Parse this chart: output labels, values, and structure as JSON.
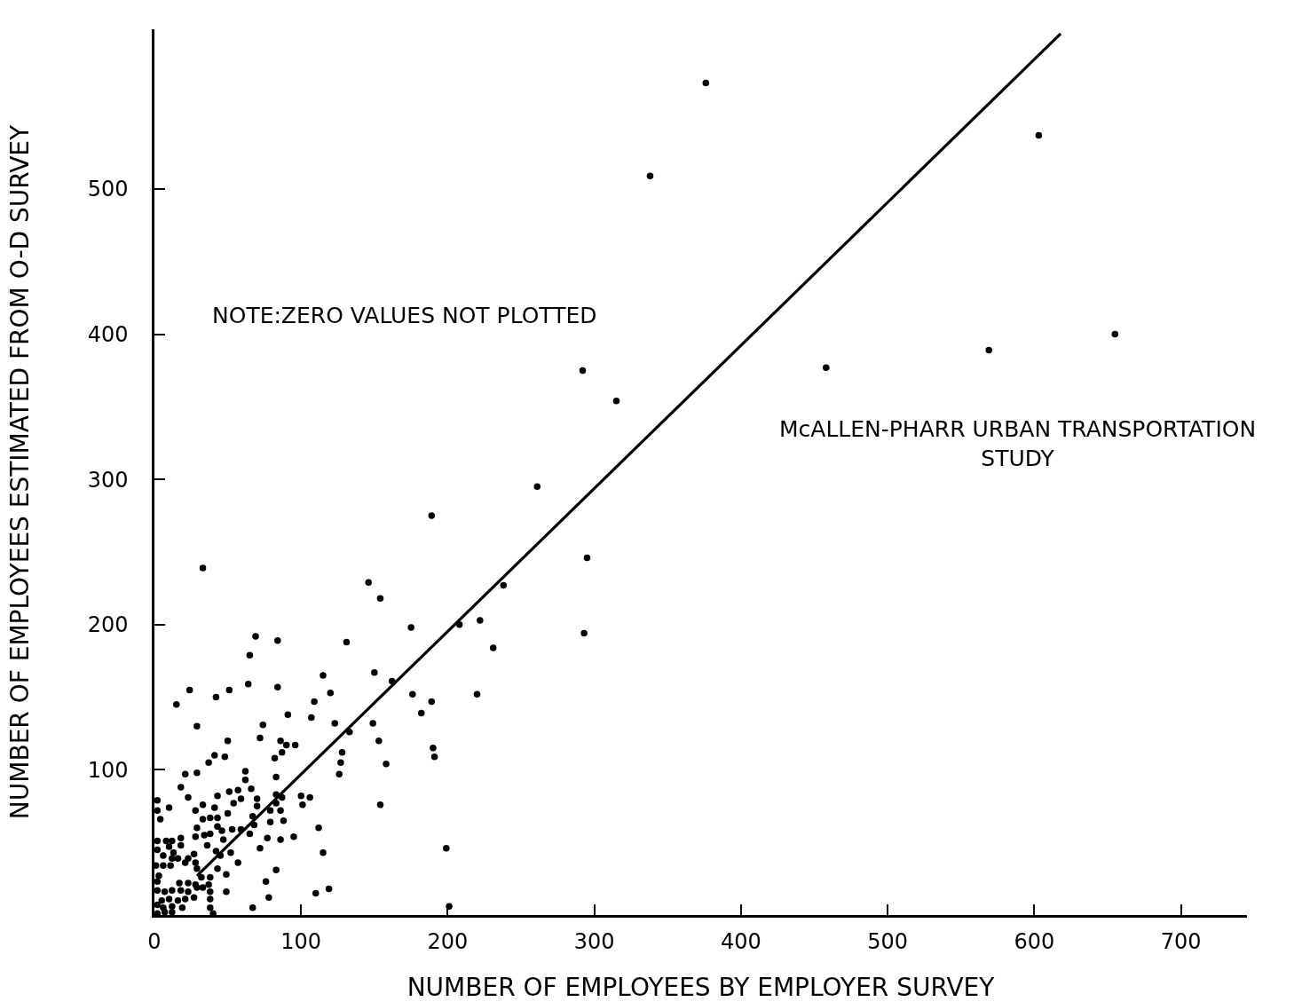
{
  "chart_data": {
    "type": "scatter",
    "xlabel": "NUMBER OF EMPLOYEES BY EMPLOYER SURVEY",
    "ylabel": "NUMBER OF EMPLOYEES ESTIMATED FROM O-D SURVEY",
    "annotations": [
      "NOTE:ZERO VALUES NOT PLOTTED",
      "McALLEN-PHARR URBAN TRANSPORTATION\nSTUDY"
    ],
    "xlim": [
      0,
      745
    ],
    "ylim": [
      0,
      610
    ],
    "xticks": [
      0,
      100,
      200,
      300,
      400,
      500,
      600,
      700
    ],
    "yticks": [
      100,
      200,
      300,
      400,
      500
    ],
    "marker": "circle",
    "series": [
      {
        "color": "#000000",
        "x": [
          376,
          338,
          603,
          458,
          569,
          655,
          292,
          315,
          261,
          189,
          295,
          293,
          33,
          146,
          154,
          175,
          131,
          150,
          115,
          162,
          120,
          176,
          189,
          109,
          220,
          182,
          107,
          123,
          149,
          133,
          153,
          96,
          128,
          190,
          191,
          127,
          158,
          126,
          154,
          100,
          106,
          101,
          112,
          95,
          115,
          110,
          119,
          199,
          201,
          208,
          222,
          231,
          238,
          69,
          84,
          65,
          24,
          51,
          64,
          84,
          42,
          15,
          91,
          29,
          74,
          50,
          72,
          86,
          90,
          87,
          41,
          48,
          37,
          21,
          29,
          62,
          62,
          18,
          23,
          43,
          51,
          57,
          66,
          59,
          70,
          2,
          2,
          10,
          4,
          33,
          28,
          41,
          54,
          70,
          50,
          33,
          38,
          43,
          67,
          79,
          83,
          87,
          83,
          86,
          83,
          82,
          88,
          79,
          68,
          29,
          43,
          46,
          53,
          59,
          65,
          47,
          28,
          34,
          38,
          36,
          42,
          52,
          45,
          57,
          72,
          77,
          86,
          83,
          76,
          78,
          67,
          49,
          49,
          43,
          2,
          8,
          12,
          18,
          18,
          2,
          10,
          13,
          6,
          16,
          12,
          23,
          27,
          21,
          28,
          1,
          6,
          11,
          29,
          32,
          38,
          37,
          38,
          38,
          38,
          40,
          33,
          29,
          23,
          17,
          18,
          23,
          12,
          7,
          2,
          3,
          2,
          27,
          21,
          16,
          10,
          5,
          19,
          12,
          6,
          2,
          2,
          7,
          12,
          28
        ],
        "values": [
          573,
          509,
          537,
          377,
          389,
          400,
          375,
          354,
          295,
          275,
          246,
          194,
          239,
          229,
          218,
          198,
          188,
          167,
          165,
          161,
          153,
          152,
          147,
          147,
          152,
          139,
          136,
          132,
          132,
          126,
          120,
          117,
          112,
          115,
          109,
          105,
          104,
          97,
          76,
          82,
          81,
          76,
          60,
          54,
          43,
          15,
          18,
          46,
          6,
          200,
          203,
          184,
          227,
          192,
          189,
          179,
          155,
          155,
          159,
          157,
          150,
          145,
          138,
          130,
          131,
          120,
          122,
          120,
          117,
          112,
          110,
          109,
          105,
          97,
          98,
          99,
          93,
          88,
          81,
          82,
          85,
          86,
          87,
          80,
          80,
          79,
          72,
          74,
          66,
          76,
          72,
          74,
          77,
          75,
          70,
          66,
          67,
          67,
          68,
          72,
          83,
          81,
          77,
          72,
          95,
          108,
          65,
          64,
          62,
          60,
          61,
          58,
          59,
          59,
          56,
          52,
          54,
          55,
          56,
          48,
          44,
          43,
          41,
          36,
          46,
          53,
          52,
          31,
          23,
          12,
          5,
          16,
          28,
          32,
          51,
          51,
          51,
          53,
          48,
          45,
          47,
          43,
          41,
          39,
          39,
          39,
          42,
          36,
          36,
          34,
          34,
          34,
          32,
          26,
          26,
          21,
          16,
          11,
          5,
          1,
          19,
          19,
          22,
          22,
          17,
          16,
          17,
          16,
          23,
          27,
          17,
          12,
          11,
          10,
          11,
          10,
          5,
          6,
          5,
          7,
          1,
          2,
          2,
          21
        ]
      },
      {
        "type": "line",
        "color": "#000000",
        "marker": "none",
        "line_style": "solid",
        "x": [
          29,
          618
        ],
        "values": [
          27,
          607
        ]
      }
    ]
  }
}
